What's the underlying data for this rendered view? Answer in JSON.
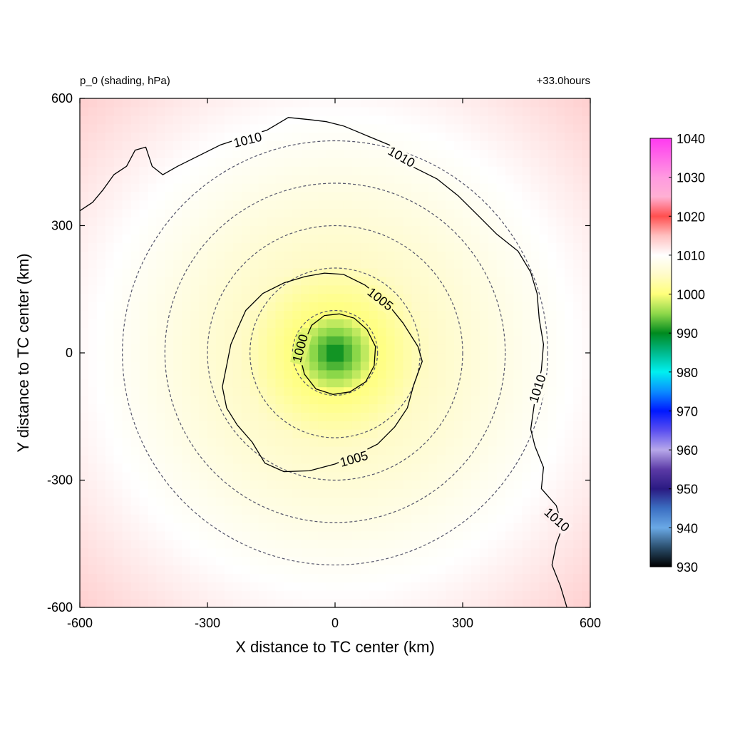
{
  "chart_data": {
    "type": "heatmap",
    "title_left": "p_0 (shading, hPa)",
    "title_right": "+33.0hours",
    "xlabel": "X distance to TC center (km)",
    "ylabel": "Y distance to TC center (km)",
    "xlim": [
      -600,
      600
    ],
    "ylim": [
      -600,
      600
    ],
    "xticks": [
      -600,
      -300,
      0,
      300,
      600
    ],
    "yticks": [
      -600,
      -300,
      0,
      300,
      600
    ],
    "xtick_labels": [
      "-600",
      "-300",
      "0",
      "300",
      "600"
    ],
    "ytick_labels": [
      "-600",
      "-300",
      "0",
      "300",
      "600"
    ],
    "field": {
      "name": "p_0",
      "units": "hPa",
      "center_value": 989,
      "center_xy": [
        0,
        0
      ],
      "radius_1000": 95,
      "radius_1005": 220,
      "radius_1010": 560,
      "far_value": 1014
    },
    "colorbar": {
      "min": 930,
      "max": 1040,
      "ticks": [
        1040,
        1030,
        1020,
        1010,
        1000,
        990,
        980,
        970,
        960,
        950,
        940,
        930
      ],
      "tick_labels": [
        "1040",
        "1030",
        "1020",
        "1010",
        "1000",
        "990",
        "980",
        "970",
        "960",
        "950",
        "940",
        "930"
      ],
      "stops": [
        {
          "value": 930,
          "color": "#000000"
        },
        {
          "value": 935,
          "color": "#2b4f6e"
        },
        {
          "value": 940,
          "color": "#6aa9e6"
        },
        {
          "value": 945,
          "color": "#3b6fc2"
        },
        {
          "value": 950,
          "color": "#2a1a82"
        },
        {
          "value": 955,
          "color": "#5b3aa6"
        },
        {
          "value": 960,
          "color": "#b7a8ea"
        },
        {
          "value": 965,
          "color": "#5a4ff0"
        },
        {
          "value": 970,
          "color": "#0018ff"
        },
        {
          "value": 975,
          "color": "#0a8cff"
        },
        {
          "value": 980,
          "color": "#00f0f0"
        },
        {
          "value": 985,
          "color": "#00b98c"
        },
        {
          "value": 990,
          "color": "#008a1e"
        },
        {
          "value": 995,
          "color": "#8ed84a"
        },
        {
          "value": 1000,
          "color": "#ffff7a"
        },
        {
          "value": 1005,
          "color": "#fffbc8"
        },
        {
          "value": 1010,
          "color": "#ffffff"
        },
        {
          "value": 1015,
          "color": "#ffc0c0"
        },
        {
          "value": 1020,
          "color": "#ff4f4f"
        },
        {
          "value": 1025,
          "color": "#ffb0d4"
        },
        {
          "value": 1030,
          "color": "#ff9ae0"
        },
        {
          "value": 1035,
          "color": "#ff6ae8"
        },
        {
          "value": 1040,
          "color": "#ff3af0"
        }
      ]
    },
    "range_rings_km": [
      100,
      200,
      300,
      400,
      500
    ],
    "contours": [
      {
        "level": 1000,
        "label": "1000",
        "points": [
          [
            -70,
            30
          ],
          [
            -55,
            65
          ],
          [
            -25,
            88
          ],
          [
            10,
            92
          ],
          [
            45,
            82
          ],
          [
            75,
            55
          ],
          [
            95,
            15
          ],
          [
            92,
            -30
          ],
          [
            72,
            -68
          ],
          [
            35,
            -92
          ],
          [
            -5,
            -98
          ],
          [
            -45,
            -85
          ],
          [
            -72,
            -50
          ],
          [
            -82,
            -10
          ]
        ]
      },
      {
        "level": 1005,
        "label": "1005",
        "points": [
          [
            -210,
            100
          ],
          [
            -170,
            140
          ],
          [
            -120,
            165
          ],
          [
            -70,
            180
          ],
          [
            -25,
            188
          ],
          [
            20,
            185
          ],
          [
            70,
            160
          ],
          [
            120,
            120
          ],
          [
            160,
            70
          ],
          [
            195,
            15
          ],
          [
            205,
            -20
          ],
          [
            185,
            -75
          ],
          [
            170,
            -130
          ],
          [
            140,
            -175
          ],
          [
            100,
            -215
          ],
          [
            50,
            -240
          ],
          [
            0,
            -262
          ],
          [
            -60,
            -278
          ],
          [
            -120,
            -280
          ],
          [
            -165,
            -260
          ],
          [
            -195,
            -210
          ],
          [
            -230,
            -170
          ],
          [
            -255,
            -130
          ],
          [
            -265,
            -80
          ],
          [
            -255,
            -30
          ],
          [
            -245,
            20
          ],
          [
            -228,
            60
          ]
        ]
      },
      {
        "level": 1010,
        "label": "1010",
        "points": [
          [
            -600,
            335
          ],
          [
            -570,
            355
          ],
          [
            -545,
            385
          ],
          [
            -520,
            420
          ],
          [
            -490,
            440
          ],
          [
            -470,
            478
          ],
          [
            -445,
            485
          ],
          [
            -430,
            440
          ],
          [
            -405,
            420
          ],
          [
            -370,
            440
          ],
          [
            -320,
            465
          ],
          [
            -270,
            490
          ],
          [
            -210,
            510
          ],
          [
            -160,
            525
          ],
          [
            -110,
            555
          ],
          [
            -60,
            550
          ],
          [
            -20,
            545
          ],
          [
            20,
            535
          ],
          [
            80,
            510
          ],
          [
            140,
            485
          ],
          [
            180,
            440
          ],
          [
            240,
            410
          ],
          [
            290,
            370
          ],
          [
            340,
            320
          ],
          [
            380,
            280
          ],
          [
            430,
            240
          ],
          [
            460,
            190
          ],
          [
            475,
            140
          ],
          [
            480,
            80
          ],
          [
            490,
            20
          ],
          [
            485,
            -40
          ],
          [
            470,
            -110
          ],
          [
            460,
            -180
          ],
          [
            470,
            -220
          ],
          [
            490,
            -270
          ],
          [
            485,
            -320
          ],
          [
            520,
            -360
          ],
          [
            535,
            -410
          ],
          [
            520,
            -450
          ],
          [
            510,
            -500
          ],
          [
            530,
            -550
          ],
          [
            545,
            -600
          ]
        ]
      }
    ],
    "contour_labels": [
      {
        "text": "1010",
        "x": -205,
        "y": 500,
        "angle": -14
      },
      {
        "text": "1010",
        "x": 155,
        "y": 460,
        "angle": 30
      },
      {
        "text": "1010",
        "x": 478,
        "y": -85,
        "angle": -72
      },
      {
        "text": "1010",
        "x": 520,
        "y": -395,
        "angle": 42
      },
      {
        "text": "1005",
        "x": 105,
        "y": 125,
        "angle": 38
      },
      {
        "text": "1005",
        "x": 45,
        "y": -252,
        "angle": -16
      },
      {
        "text": "1000",
        "x": -80,
        "y": 10,
        "angle": -75
      }
    ]
  }
}
